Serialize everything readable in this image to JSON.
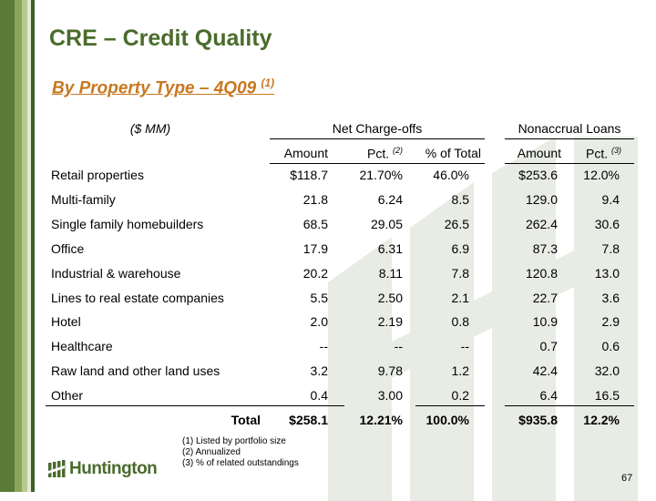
{
  "title": "CRE – Credit Quality",
  "subtitle": {
    "text": "By Property Type – 4Q09",
    "note": "(1)"
  },
  "header": {
    "units": "($ MM)",
    "group_nco": "Net Charge-offs",
    "group_nonaccrual": "Nonaccrual Loans",
    "col_amount": "Amount",
    "col_pct": "Pct.",
    "col_pct_note": "(2)",
    "col_pct_total": "% of Total",
    "col_na_amount": "Amount",
    "col_na_pct": "Pct.",
    "col_na_pct_note": "(3)"
  },
  "rows": [
    {
      "label": "Retail properties",
      "nco_amount": "$118.7",
      "nco_pct": "21.70%",
      "pct_total": "46.0%",
      "na_amount": "$253.6",
      "na_pct": "12.0%"
    },
    {
      "label": "Multi-family",
      "nco_amount": "21.8",
      "nco_pct": "6.24",
      "pct_total": "8.5",
      "na_amount": "129.0",
      "na_pct": "9.4"
    },
    {
      "label": "Single family homebuilders",
      "nco_amount": "68.5",
      "nco_pct": "29.05",
      "pct_total": "26.5",
      "na_amount": "262.4",
      "na_pct": "30.6"
    },
    {
      "label": "Office",
      "nco_amount": "17.9",
      "nco_pct": "6.31",
      "pct_total": "6.9",
      "na_amount": "87.3",
      "na_pct": "7.8"
    },
    {
      "label": "Industrial & warehouse",
      "nco_amount": "20.2",
      "nco_pct": "8.11",
      "pct_total": "7.8",
      "na_amount": "120.8",
      "na_pct": "13.0"
    },
    {
      "label": "Lines to real estate companies",
      "nco_amount": "5.5",
      "nco_pct": "2.50",
      "pct_total": "2.1",
      "na_amount": "22.7",
      "na_pct": "3.6"
    },
    {
      "label": "Hotel",
      "nco_amount": "2.0",
      "nco_pct": "2.19",
      "pct_total": "0.8",
      "na_amount": "10.9",
      "na_pct": "2.9"
    },
    {
      "label": "Healthcare",
      "nco_amount": "--",
      "nco_pct": "--",
      "pct_total": "--",
      "na_amount": "0.7",
      "na_pct": "0.6"
    },
    {
      "label": "Raw land and other land uses",
      "nco_amount": "3.2",
      "nco_pct": "9.78",
      "pct_total": "1.2",
      "na_amount": "42.4",
      "na_pct": "32.0"
    },
    {
      "label": "Other",
      "nco_amount": "0.4",
      "nco_pct": "3.00",
      "pct_total": "0.2",
      "na_amount": "6.4",
      "na_pct": "16.5"
    }
  ],
  "total": {
    "label": "Total",
    "nco_amount": "$258.1",
    "nco_pct": "12.21%",
    "pct_total": "100.0%",
    "na_amount": "$935.8",
    "na_pct": "12.2%"
  },
  "footnotes": [
    "(1)  Listed by portfolio size",
    "(2)  Annualized",
    "(3)  % of related outstandings"
  ],
  "logo": {
    "text": "Huntington"
  },
  "page_number": "67",
  "colors": {
    "brand_green": "#4a6b2b",
    "accent_orange": "#c87820"
  }
}
